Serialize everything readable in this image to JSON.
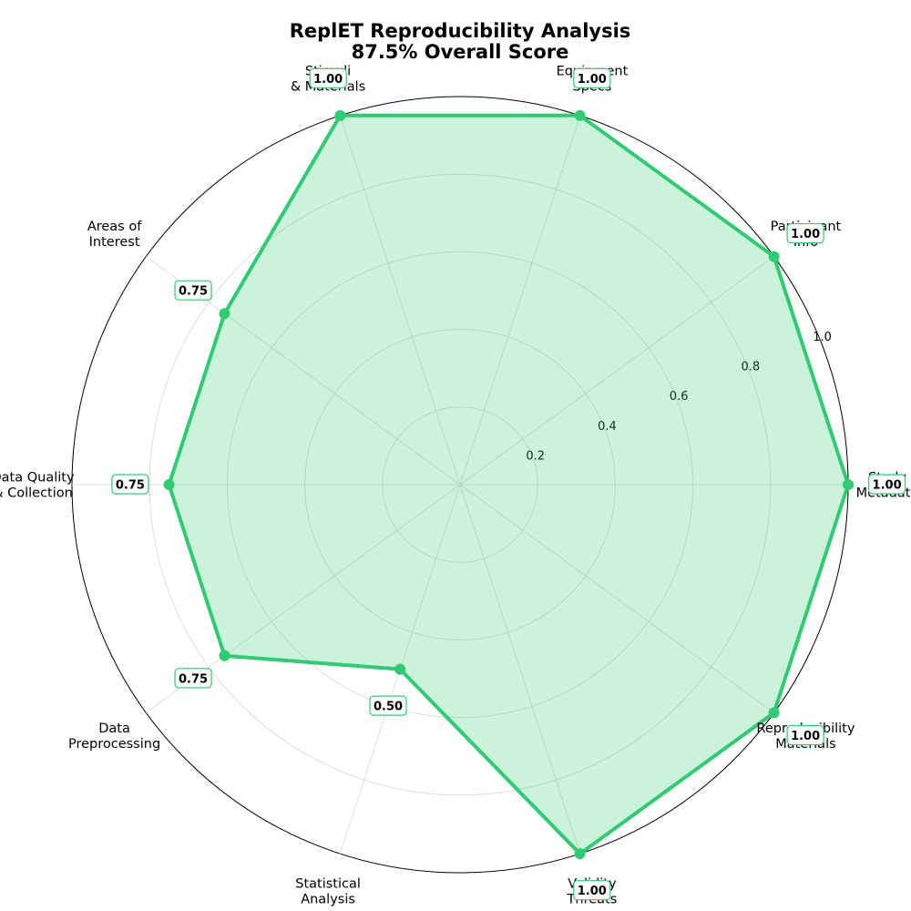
{
  "chart_data": {
    "type": "radar",
    "title": "ReplET Reproducibility Analysis",
    "subtitle": "87.5% Overall Score",
    "categories": [
      "Study\nMetadata",
      "Participant\nInfo",
      "Equipment\nSpecs",
      "Stimuli\n& Materials",
      "Areas of\nInterest",
      "Data Quality\n& Collection",
      "Data\nPreprocessing",
      "Statistical\nAnalysis",
      "Validity\nThreats",
      "Reproducibility\nMaterials"
    ],
    "values": [
      1.0,
      1.0,
      1.0,
      1.0,
      0.75,
      0.75,
      0.75,
      0.5,
      1.0,
      1.0
    ],
    "value_labels": [
      "1.00",
      "1.00",
      "1.00",
      "1.00",
      "0.75",
      "0.75",
      "0.75",
      "0.50",
      "1.00",
      "1.00"
    ],
    "rlim": [
      0,
      1.0
    ],
    "rticks": [
      0.2,
      0.4,
      0.6,
      0.8,
      1.0
    ],
    "rtick_labels": [
      "0.2",
      "0.4",
      "0.6",
      "0.8",
      "1.0"
    ],
    "grid": true,
    "colors": {
      "line": "#2ecc71",
      "fill": "#2ecc71",
      "grid": "#dddddd",
      "outer": "#000000"
    }
  }
}
